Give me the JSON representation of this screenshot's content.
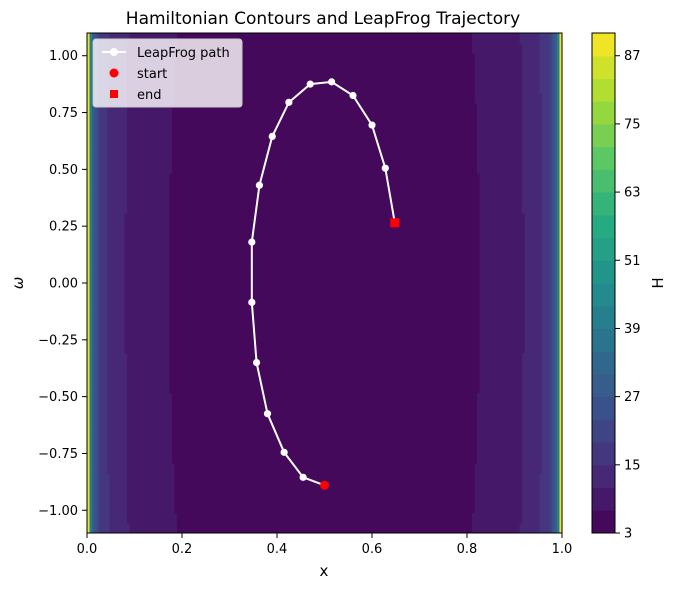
{
  "chart_data": {
    "type": "contour",
    "title": "Hamiltonian Contours and LeapFrog Trajectory",
    "xlabel": "x",
    "ylabel": "ω",
    "colorbar_label": "H",
    "xlim": [
      0.0,
      1.0
    ],
    "ylim": [
      -1.1,
      1.1
    ],
    "x_ticks": [
      "0.0",
      "0.2",
      "0.4",
      "0.6",
      "0.8",
      "1.0"
    ],
    "y_ticks": [
      "1.00",
      "0.75",
      "0.50",
      "0.25",
      "0.00",
      "−0.25",
      "−0.50",
      "−0.75",
      "−1.00"
    ],
    "colorbar_ticks": [
      "87",
      "75",
      "63",
      "51",
      "39",
      "27",
      "15",
      "3"
    ],
    "colorbar_range": [
      3,
      91
    ],
    "colormap": "viridis",
    "grid": false,
    "legend_position": "top-left",
    "legend": [
      "LeapFrog path",
      "start",
      "end"
    ],
    "series": [
      {
        "name": "LeapFrog path",
        "color": "#ffffff",
        "marker": "circle",
        "x": [
          0.5,
          0.455,
          0.415,
          0.38,
          0.357,
          0.347,
          0.347,
          0.363,
          0.39,
          0.425,
          0.47,
          0.515,
          0.56,
          0.6,
          0.628,
          0.648
        ],
        "y": [
          -0.89,
          -0.855,
          -0.745,
          -0.575,
          -0.35,
          -0.085,
          0.18,
          0.43,
          0.645,
          0.795,
          0.875,
          0.885,
          0.825,
          0.695,
          0.505,
          0.265
        ]
      },
      {
        "name": "start",
        "color": "#ff0000",
        "marker": "circle",
        "x": [
          0.5
        ],
        "y": [
          -0.89
        ]
      },
      {
        "name": "end",
        "color": "#ff0000",
        "marker": "square",
        "x": [
          0.648
        ],
        "y": [
          0.265
        ]
      }
    ]
  },
  "colors": {
    "trajectory": "#ffffff",
    "markers": "#ff0000"
  }
}
